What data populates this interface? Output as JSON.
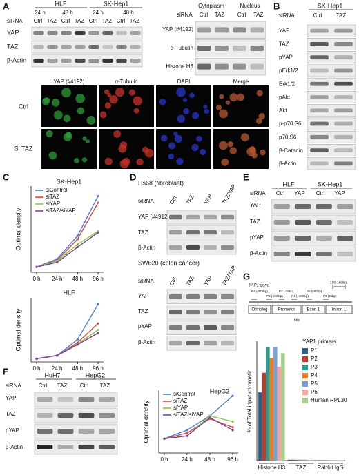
{
  "panel_labels": [
    "A",
    "B",
    "C",
    "D",
    "E",
    "F",
    "G"
  ],
  "panel_a": {
    "cell_lines": [
      "HLF",
      "SK-Hep1"
    ],
    "times": [
      "24 h",
      "48 h",
      "24 h",
      "48 h"
    ],
    "sirna": "siRNA",
    "lanes": [
      "Ctrl",
      "TAZ",
      "Ctrl",
      "TAZ",
      "Ctrl",
      "TAZ",
      "Ctrl",
      "TAZ"
    ],
    "rows": [
      "YAP",
      "TAZ",
      "β-Actin"
    ],
    "fractionation": {
      "fractions": [
        "Cytoplasm",
        "Nucleus"
      ],
      "sirna": "siRNA",
      "lanes": [
        "Ctrl",
        "TAZ",
        "Ctrl",
        "TAZ"
      ],
      "rows": [
        "YAP (#4192)",
        "α-Tubulin",
        "Histone H3"
      ]
    },
    "imaging": {
      "columns": [
        "YAP (#4192)",
        "α-Tubulin",
        "DAPI",
        "Merge"
      ],
      "rows": [
        "Ctrl",
        "Si TAZ"
      ]
    }
  },
  "panel_b": {
    "cell_line": "SK-Hep1",
    "sirna": "siRNA",
    "lanes": [
      "Ctrl",
      "TAZ"
    ],
    "rows": [
      "YAP",
      "TAZ",
      "pYAP",
      "pErk1/2",
      "Erk1/2",
      "pAkt",
      "Akt",
      "p-p70 S6",
      "p70 S6",
      "β-Catenin",
      "β-Actin"
    ]
  },
  "panel_d": {
    "blots": [
      {
        "cell_line": "Hs68 (fibroblast)",
        "sirna": "siRNA",
        "lanes": [
          "Ctrl",
          "TAZ",
          "YAP",
          "TAZ/YAP"
        ],
        "rows": [
          "YAP (#4912)",
          "TAZ",
          "β-Actin"
        ]
      },
      {
        "cell_line": "SW620 (colon cancer)",
        "sirna": "siRNA",
        "lanes": [
          "Ctrl",
          "TAZ",
          "YAP",
          "TAZ/YAP"
        ],
        "rows": [
          "YAP",
          "TAZ",
          "pYAP",
          "β-Actin"
        ]
      }
    ]
  },
  "panel_e": {
    "cell_lines": [
      "HLF",
      "SK-Hep1"
    ],
    "sirna": "siRNA",
    "lanes": [
      "Ctrl",
      "YAP",
      "Ctrl",
      "YAP"
    ],
    "rows": [
      "YAP",
      "TAZ",
      "pYAP",
      "β-Actin"
    ]
  },
  "panel_f": {
    "cell_lines": [
      "HuH7",
      "HepG2"
    ],
    "sirna": "siRNA",
    "lanes": [
      "Ctrl",
      "TAZ",
      "Ctrl",
      "TAZ"
    ],
    "rows": [
      "YAP",
      "TAZ",
      "pYAP",
      "β-Actin"
    ]
  },
  "panel_g": {
    "gene": "YAP1 gene",
    "primers": [
      "P1 (-376bp)",
      "P2 (-180bp)",
      "P3 (-35bp)",
      "P4 (+100bp)",
      "P5 (600bp)",
      "P6 (2kbp)"
    ],
    "fragment": "100-150bp",
    "regions": [
      "Ortholog",
      "Promotor",
      "Exon 1",
      "Intron 1"
    ],
    "scale": "6bp"
  },
  "chart_data": [
    {
      "type": "line",
      "title": "SK-Hep1",
      "ylabel": "Optimal density",
      "categories": [
        "0 h",
        "24 h",
        "48 h",
        "96 h"
      ],
      "ylim": [
        0,
        1.3
      ],
      "series": [
        {
          "name": "siControl",
          "color": "#4a7fd4",
          "values": [
            0.08,
            0.2,
            0.55,
            1.15
          ]
        },
        {
          "name": "siTAZ",
          "color": "#d9463e",
          "values": [
            0.08,
            0.18,
            0.5,
            1.05
          ]
        },
        {
          "name": "siYAP",
          "color": "#8cc63f",
          "values": [
            0.08,
            0.17,
            0.42,
            0.62
          ]
        },
        {
          "name": "siTAZ/siYAP",
          "color": "#7b3f9e",
          "values": [
            0.08,
            0.15,
            0.38,
            0.6
          ]
        }
      ]
    },
    {
      "type": "line",
      "title": "HLF",
      "ylabel": "Optimal density",
      "categories": [
        "0 h",
        "24 h",
        "48 h",
        "96 h"
      ],
      "ylim": [
        0,
        1.0
      ],
      "series": [
        {
          "color": "#4a7fd4",
          "values": [
            0.05,
            0.1,
            0.35,
            0.9
          ]
        },
        {
          "color": "#d9463e",
          "values": [
            0.05,
            0.1,
            0.3,
            0.6
          ]
        },
        {
          "color": "#8cc63f",
          "values": [
            0.05,
            0.1,
            0.28,
            0.5
          ]
        },
        {
          "color": "#7b3f9e",
          "values": [
            0.05,
            0.1,
            0.27,
            0.45
          ]
        }
      ]
    },
    {
      "type": "line",
      "title": "HepG2",
      "ylabel": "Optimal density",
      "categories": [
        "0 h",
        "24 h",
        "48 h",
        "96 h"
      ],
      "ylim": [
        0,
        1.1
      ],
      "series": [
        {
          "name": "siControl",
          "color": "#4a7fd4",
          "values": [
            0.25,
            0.4,
            0.65,
            1.0
          ]
        },
        {
          "name": "siTAZ",
          "color": "#d9463e",
          "values": [
            0.25,
            0.35,
            0.6,
            0.45
          ]
        },
        {
          "name": "siYAP",
          "color": "#8cc63f",
          "values": [
            0.25,
            0.3,
            0.65,
            0.55
          ]
        },
        {
          "name": "siTAZ/siYAP",
          "color": "#7b3f9e",
          "values": [
            0.25,
            0.3,
            0.62,
            0.4
          ]
        }
      ]
    },
    {
      "type": "bar",
      "ylabel": "% of Total input chromatin",
      "legend_title": "YAP1 primers",
      "categories": [
        "Histone H3",
        "TAZ",
        "Rabbit IgG"
      ],
      "ylim": [
        0,
        14
      ],
      "series": [
        {
          "name": "P1",
          "color": "#2e5f8a",
          "values": [
            8,
            0.1,
            0.05
          ]
        },
        {
          "name": "P2",
          "color": "#c0392b",
          "values": [
            10.3,
            0.1,
            0.05
          ]
        },
        {
          "name": "P3",
          "color": "#2a9d8f",
          "values": [
            13.3,
            0.1,
            0.05
          ]
        },
        {
          "name": "P4",
          "color": "#e67e22",
          "values": [
            12,
            0.1,
            0.05
          ]
        },
        {
          "name": "P5",
          "color": "#7b9fd4",
          "values": [
            13.3,
            0.1,
            0.05
          ]
        },
        {
          "name": "P6",
          "color": "#f4a6a0",
          "values": [
            11,
            0.1,
            0.05
          ]
        },
        {
          "name": "Human RPL30",
          "color": "#a8d08d",
          "values": [
            12.6,
            0.1,
            0.05
          ]
        }
      ]
    }
  ]
}
